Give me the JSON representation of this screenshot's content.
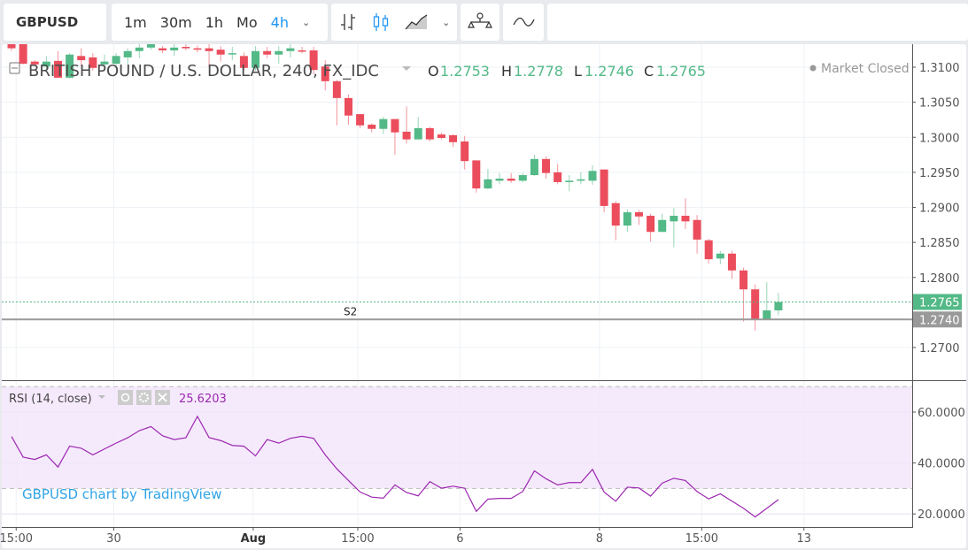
{
  "toolbar": {
    "symbol": "GBPUSD",
    "intervals": [
      "1m",
      "30m",
      "1h",
      "Mo",
      "4h"
    ],
    "active_interval": "4h",
    "icons": [
      "bar-chart-icon",
      "candles-icon",
      "area-chart-icon",
      "indicators-icon",
      "compare-icon"
    ]
  },
  "legend": {
    "title": "BRITISH POUND / U.S. DOLLAR, 240, FX_IDC",
    "o_label": "O",
    "o": "1.2753",
    "h_label": "H",
    "h": "1.2778",
    "l_label": "L",
    "l": "1.2746",
    "c_label": "C",
    "c": "1.2765",
    "market_status": "Market Closed"
  },
  "rsi_legend": {
    "title": "RSI (14, close)",
    "value": "25.6203"
  },
  "watermark": "GBPUSD chart by TradingView",
  "colors": {
    "up": "#53b987",
    "down": "#eb4d5c",
    "rsi": "#9c27b0",
    "rsi_band": "#f3e5fb",
    "accent": "#2196f3",
    "s2_line": "#999999"
  },
  "chart_data": {
    "type": "candlestick",
    "ylim": [
      1.266,
      1.3135
    ],
    "y_ticks": [
      "1.3100",
      "1.3050",
      "1.3000",
      "1.2950",
      "1.2900",
      "1.2850",
      "1.2800",
      "1.2700"
    ],
    "x_ticks": [
      {
        "label": "15:00",
        "index": 0.4,
        "bold": false
      },
      {
        "label": "30",
        "index": 8.8,
        "bold": false
      },
      {
        "label": "Aug",
        "index": 20.8,
        "bold": true
      },
      {
        "label": "15:00",
        "index": 29.8,
        "bold": false
      },
      {
        "label": "6",
        "index": 38.6,
        "bold": false
      },
      {
        "label": "8",
        "index": 50.6,
        "bold": false
      },
      {
        "label": "15:00",
        "index": 59.4,
        "bold": false
      },
      {
        "label": "13",
        "index": 68.2,
        "bold": false
      }
    ],
    "last_price": {
      "value": 1.2765,
      "label": "1.2765"
    },
    "s2": {
      "value": 1.274,
      "label": "1.2740",
      "name": "S2"
    },
    "candles_ohlc": [
      [
        1.3133,
        1.3135,
        1.3123,
        1.3127
      ],
      [
        1.3133,
        1.3136,
        1.3104,
        1.3105
      ],
      [
        1.3108,
        1.311,
        1.3101,
        1.3104
      ],
      [
        1.3101,
        1.3116,
        1.3097,
        1.3108
      ],
      [
        1.3109,
        1.3123,
        1.3085,
        1.3085
      ],
      [
        1.3085,
        1.312,
        1.3084,
        1.3118
      ],
      [
        1.3116,
        1.3127,
        1.3101,
        1.311
      ],
      [
        1.3114,
        1.312,
        1.3095,
        1.3099
      ],
      [
        1.3104,
        1.3118,
        1.3097,
        1.3108
      ],
      [
        1.3105,
        1.312,
        1.3097,
        1.3116
      ],
      [
        1.3114,
        1.3127,
        1.3104,
        1.3123
      ],
      [
        1.3123,
        1.3133,
        1.3113,
        1.3128
      ],
      [
        1.3128,
        1.3136,
        1.3125,
        1.3133
      ],
      [
        1.3127,
        1.313,
        1.312,
        1.3124
      ],
      [
        1.3124,
        1.3133,
        1.3116,
        1.3128
      ],
      [
        1.3129,
        1.3133,
        1.3124,
        1.3127
      ],
      [
        1.3127,
        1.3131,
        1.3121,
        1.3125
      ],
      [
        1.3127,
        1.3133,
        1.3101,
        1.3123
      ],
      [
        1.3125,
        1.313,
        1.3108,
        1.3118
      ],
      [
        1.3119,
        1.3129,
        1.311,
        1.312
      ],
      [
        1.3116,
        1.3121,
        1.3095,
        1.3099
      ],
      [
        1.3099,
        1.313,
        1.3095,
        1.3123
      ],
      [
        1.3123,
        1.3129,
        1.3113,
        1.3118
      ],
      [
        1.3118,
        1.313,
        1.3105,
        1.3123
      ],
      [
        1.3123,
        1.3133,
        1.3114,
        1.3127
      ],
      [
        1.3124,
        1.3129,
        1.312,
        1.3123
      ],
      [
        1.3124,
        1.3129,
        1.309,
        1.3096
      ],
      [
        1.3101,
        1.311,
        1.3067,
        1.308
      ],
      [
        1.308,
        1.3082,
        1.3017,
        1.3056
      ],
      [
        1.3056,
        1.3061,
        1.3018,
        1.3031
      ],
      [
        1.3033,
        1.3033,
        1.3013,
        1.3017
      ],
      [
        1.3018,
        1.302,
        1.3007,
        1.3012
      ],
      [
        1.3012,
        1.3029,
        1.3005,
        1.3026
      ],
      [
        1.3026,
        1.3026,
        1.2975,
        1.3007
      ],
      [
        1.3008,
        1.3044,
        1.2991,
        1.2997
      ],
      [
        1.2997,
        1.3029,
        1.2997,
        1.3013
      ],
      [
        1.3013,
        1.3015,
        1.2994,
        1.2997
      ],
      [
        1.3004,
        1.3007,
        1.2997,
        1.2999
      ],
      [
        1.3003,
        1.3004,
        1.2986,
        1.2993
      ],
      [
        1.2994,
        1.3002,
        1.2954,
        1.2966
      ],
      [
        1.2967,
        1.2967,
        1.2921,
        1.2927
      ],
      [
        1.2927,
        1.2955,
        1.2926,
        1.294
      ],
      [
        1.2938,
        1.2949,
        1.2933,
        1.2941
      ],
      [
        1.2941,
        1.2949,
        1.2935,
        1.2938
      ],
      [
        1.2938,
        1.2949,
        1.2936,
        1.2946
      ],
      [
        1.2946,
        1.2975,
        1.2945,
        1.2969
      ],
      [
        1.2969,
        1.2973,
        1.2941,
        1.2949
      ],
      [
        1.295,
        1.2962,
        1.2933,
        1.2936
      ],
      [
        1.2936,
        1.2946,
        1.2923,
        1.2938
      ],
      [
        1.2938,
        1.295,
        1.2933,
        1.294
      ],
      [
        1.2938,
        1.296,
        1.2932,
        1.2952
      ],
      [
        1.2954,
        1.2954,
        1.2893,
        1.2902
      ],
      [
        1.2906,
        1.2909,
        1.2853,
        1.2874
      ],
      [
        1.2874,
        1.2897,
        1.2865,
        1.2893
      ],
      [
        1.2893,
        1.2896,
        1.2875,
        1.2887
      ],
      [
        1.2888,
        1.2891,
        1.2851,
        1.2865
      ],
      [
        1.2865,
        1.2891,
        1.2865,
        1.2882
      ],
      [
        1.288,
        1.2899,
        1.2843,
        1.2888
      ],
      [
        1.2888,
        1.2913,
        1.2869,
        1.288
      ],
      [
        1.2882,
        1.2889,
        1.2834,
        1.2854
      ],
      [
        1.2853,
        1.2855,
        1.282,
        1.2826
      ],
      [
        1.2827,
        1.2838,
        1.2819,
        1.2834
      ],
      [
        1.2834,
        1.2838,
        1.2798,
        1.281
      ],
      [
        1.281,
        1.2814,
        1.2737,
        1.2783
      ],
      [
        1.2783,
        1.279,
        1.2724,
        1.274
      ],
      [
        1.274,
        1.2793,
        1.274,
        1.2753
      ],
      [
        1.2753,
        1.2778,
        1.2746,
        1.2765
      ]
    ],
    "rsi": {
      "ylim": [
        15,
        72
      ],
      "upper_band": 70,
      "lower_band": 30,
      "y_ticks": [
        "60.0000",
        "40.0000",
        "20.0000"
      ],
      "values": [
        50.4,
        42.3,
        41.4,
        43.2,
        38.4,
        46.6,
        45.8,
        43.2,
        45.5,
        47.8,
        49.9,
        52.7,
        54.3,
        50.7,
        49.2,
        49.9,
        58.3,
        50.0,
        48.8,
        46.9,
        46.6,
        42.8,
        49.2,
        47.8,
        49.7,
        50.5,
        49.7,
        43.2,
        37.7,
        33.1,
        28.6,
        26.6,
        26.2,
        31.4,
        28.4,
        27.1,
        32.7,
        30.1,
        30.9,
        30.1,
        21.0,
        25.8,
        26.1,
        26.1,
        28.8,
        36.9,
        33.8,
        31.4,
        32.3,
        32.3,
        37.5,
        28.6,
        25.0,
        30.5,
        30.2,
        27.0,
        32.1,
        34.0,
        33.1,
        28.8,
        25.9,
        27.9,
        25.0,
        22.2,
        18.8,
        22.2,
        25.62
      ]
    }
  }
}
